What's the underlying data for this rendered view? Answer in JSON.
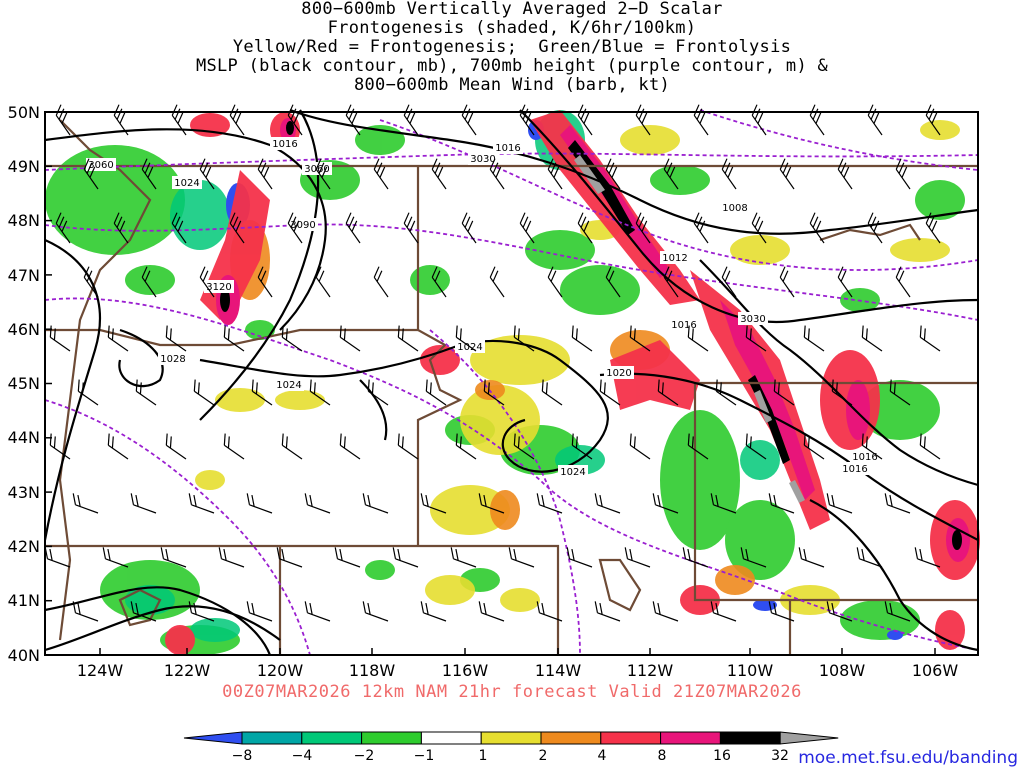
{
  "title": {
    "lines": [
      "800−600mb Vertically Averaged 2−D Scalar",
      "Frontogenesis (shaded, K/6hr/100km)",
      "Yellow/Red = Frontogenesis;  Green/Blue = Frontolysis",
      "MSLP (black contour, mb), 700mb height (purple contour, m) &",
      "800−600mb Mean Wind (barb, kt)"
    ]
  },
  "map": {
    "lon_labels": [
      "124W",
      "122W",
      "120W",
      "118W",
      "116W",
      "114W",
      "112W",
      "110W",
      "108W",
      "106W"
    ],
    "lat_labels": [
      "50N",
      "49N",
      "48N",
      "47N",
      "46N",
      "45N",
      "44N",
      "43N",
      "42N",
      "41N",
      "40N"
    ],
    "lon_range": [
      -125,
      -105
    ],
    "lat_range": [
      40,
      50
    ],
    "mslp_labels": [
      "1016",
      "1016",
      "1024",
      "1008",
      "1012",
      "1016",
      "1020",
      "1024",
      "1028",
      "1024",
      "1024",
      "1016",
      "1016"
    ],
    "height_labels": [
      "3060",
      "3060",
      "3030",
      "3090",
      "3120",
      "3030"
    ],
    "colors": {
      "mslp": "#000000",
      "height": "#9a1fd0",
      "borders": "#6e4b36",
      "barbs": "#000000"
    }
  },
  "valid_line": "00Z07MAR2026 12km NAM 21hr forecast Valid 21Z07MAR2026",
  "colorbar": {
    "ticks": [
      "−8",
      "−4",
      "−2",
      "−1",
      "1",
      "2",
      "4",
      "8",
      "16",
      "32"
    ],
    "colors": [
      "#2f4ef0",
      "#00a6a6",
      "#00c878",
      "#2ecc2e",
      "#ffffff",
      "#e6de30",
      "#ee8a1e",
      "#f5324a",
      "#e8157a",
      "#000000",
      "#a0a0a0"
    ]
  },
  "source": "moe.met.fsu.edu/banding"
}
